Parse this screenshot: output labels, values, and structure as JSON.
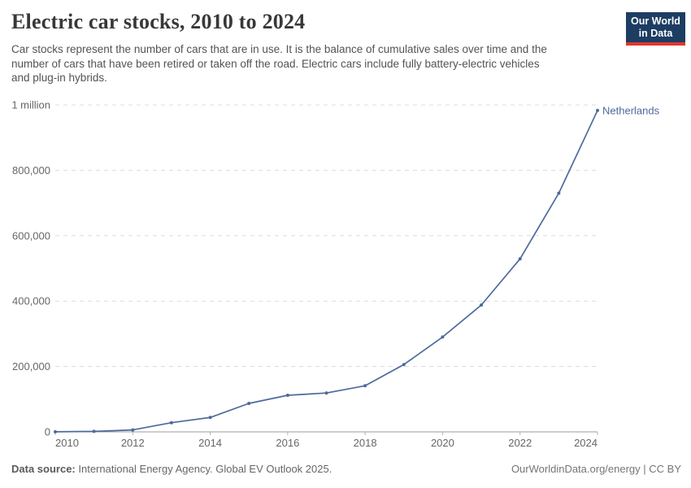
{
  "header": {
    "title": "Electric car stocks, 2010 to 2024",
    "subtitle_lines": [
      "Car stocks represent the number of cars that are in use. It is the balance of cumulative sales over time and the",
      "number of cars that have been retired or taken off the road. Electric cars include fully battery-electric vehicles",
      "and plug-in hybrids."
    ],
    "logo": {
      "line1": "Our World",
      "line2": "in Data"
    }
  },
  "footer": {
    "source_label": "Data source:",
    "source_text": " International Energy Agency. Global EV Outlook 2025.",
    "right_text": "OurWorldinData.org/energy | CC BY"
  },
  "colors": {
    "accent": "#4C6A9C",
    "grid": "#dcdcdc",
    "axis": "#9e9e9e",
    "tick": "#b3b3b3",
    "logo_bg": "#1d3d63",
    "logo_stripe": "#e0362f"
  },
  "chart_data": {
    "type": "line",
    "title": "Electric car stocks, 2010 to 2024",
    "x": [
      2010,
      2011,
      2012,
      2013,
      2014,
      2015,
      2016,
      2017,
      2018,
      2019,
      2020,
      2021,
      2022,
      2023,
      2024
    ],
    "series": [
      {
        "name": "Netherlands",
        "color": "#4C6A9C",
        "values": [
          300,
          1500,
          6000,
          28000,
          44000,
          87000,
          112000,
          119000,
          141000,
          206000,
          290000,
          388000,
          529000,
          730000,
          983000
        ]
      }
    ],
    "xlabel": "",
    "ylabel": "",
    "ylim": [
      0,
      1000000
    ],
    "yticks": [
      {
        "value": 0,
        "label": "0"
      },
      {
        "value": 200000,
        "label": "200,000"
      },
      {
        "value": 400000,
        "label": "400,000"
      },
      {
        "value": 600000,
        "label": "600,000"
      },
      {
        "value": 800000,
        "label": "800,000"
      },
      {
        "value": 1000000,
        "label": "1 million"
      }
    ],
    "xticks": [
      2010,
      2012,
      2014,
      2016,
      2018,
      2020,
      2022,
      2024
    ],
    "grid": "horizontal-dashed",
    "legend_position": "line-end-label"
  }
}
